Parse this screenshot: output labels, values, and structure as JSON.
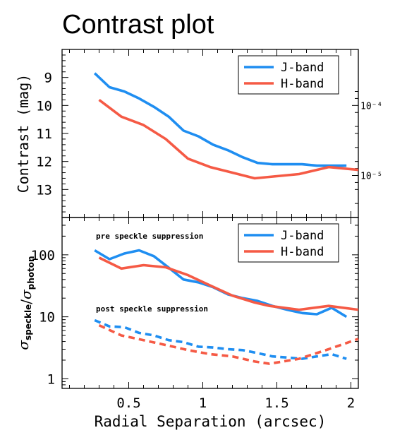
{
  "page": {
    "title": "Contrast plot"
  },
  "chart_data": [
    {
      "type": "line",
      "panel": "top",
      "xlabel": "Radial Separation (arcsec)",
      "ylabel": "Contrast (mag)",
      "xlim": [
        0.05,
        2.05
      ],
      "ylim": [
        14,
        8
      ],
      "y_inverted": true,
      "yticks": [
        9,
        10,
        11,
        12,
        13
      ],
      "right_axis_ticks": [
        "10⁻⁴",
        "10⁻⁵"
      ],
      "right_axis_tick_mags": [
        10,
        12.5
      ],
      "legend": {
        "placement": "top-right",
        "entries": [
          "J-band",
          "H-band"
        ]
      },
      "series": [
        {
          "name": "J-band",
          "color": "#1f8ef1",
          "style": "solid",
          "x": [
            0.27,
            0.37,
            0.47,
            0.57,
            0.67,
            0.77,
            0.87,
            0.97,
            1.07,
            1.17,
            1.27,
            1.37,
            1.47,
            1.57,
            1.67,
            1.77,
            1.87,
            1.97
          ],
          "y": [
            8.85,
            9.35,
            9.5,
            9.75,
            10.05,
            10.4,
            10.9,
            11.1,
            11.4,
            11.6,
            11.85,
            12.05,
            12.1,
            12.1,
            12.1,
            12.15,
            12.15,
            12.15
          ]
        },
        {
          "name": "H-band",
          "color": "#f55a45",
          "style": "solid",
          "x": [
            0.3,
            0.45,
            0.6,
            0.75,
            0.9,
            1.05,
            1.2,
            1.35,
            1.45,
            1.65,
            1.85,
            2.05
          ],
          "y": [
            9.8,
            10.4,
            10.7,
            11.2,
            11.9,
            12.2,
            12.4,
            12.6,
            12.55,
            12.45,
            12.2,
            12.3
          ]
        }
      ]
    },
    {
      "type": "line",
      "panel": "bottom",
      "xlabel": "Radial Separation (arcsec)",
      "ylabel": "σspeckle/σphoton",
      "xlim": [
        0.05,
        2.05
      ],
      "ylim": [
        0.7,
        400
      ],
      "yscale": "log",
      "yticks": [
        1,
        10,
        100
      ],
      "xticks": [
        0.5,
        1,
        1.5,
        2
      ],
      "legend": {
        "placement": "top-right",
        "entries": [
          "J-band",
          "H-band"
        ]
      },
      "annotations": [
        "pre speckle suppression",
        "post speckle suppression"
      ],
      "series": [
        {
          "name": "J-band",
          "group": "pre speckle suppression",
          "color": "#1f8ef1",
          "style": "solid",
          "x": [
            0.27,
            0.37,
            0.47,
            0.57,
            0.67,
            0.77,
            0.87,
            0.97,
            1.07,
            1.17,
            1.27,
            1.37,
            1.47,
            1.57,
            1.67,
            1.77,
            1.87,
            1.97
          ],
          "y": [
            118,
            85,
            105,
            118,
            95,
            62,
            40,
            36,
            30,
            23,
            20,
            18,
            15,
            13,
            11.5,
            11,
            14,
            10
          ]
        },
        {
          "name": "H-band",
          "group": "pre speckle suppression",
          "color": "#f55a45",
          "style": "solid",
          "x": [
            0.3,
            0.45,
            0.6,
            0.75,
            0.9,
            1.05,
            1.2,
            1.35,
            1.45,
            1.65,
            1.85,
            2.05
          ],
          "y": [
            90,
            60,
            68,
            63,
            47,
            32,
            22,
            17,
            15,
            13,
            15,
            13
          ]
        },
        {
          "name": "J-band",
          "group": "post speckle suppression",
          "color": "#1f8ef1",
          "style": "dashed",
          "x": [
            0.27,
            0.37,
            0.47,
            0.57,
            0.67,
            0.77,
            0.87,
            0.97,
            1.07,
            1.17,
            1.27,
            1.37,
            1.47,
            1.57,
            1.67,
            1.77,
            1.87,
            1.97
          ],
          "y": [
            8.8,
            7.0,
            6.8,
            5.5,
            5.0,
            4.2,
            3.9,
            3.3,
            3.2,
            3.0,
            2.9,
            2.6,
            2.3,
            2.2,
            2.1,
            2.3,
            2.5,
            2.1
          ]
        },
        {
          "name": "H-band",
          "group": "post speckle suppression",
          "color": "#f55a45",
          "style": "dashed",
          "x": [
            0.3,
            0.45,
            0.6,
            0.75,
            0.9,
            1.05,
            1.2,
            1.35,
            1.45,
            1.65,
            1.85,
            2.05
          ],
          "y": [
            7.3,
            5.0,
            4.2,
            3.5,
            2.9,
            2.5,
            2.3,
            1.9,
            1.75,
            2.1,
            3.0,
            4.4
          ]
        }
      ]
    }
  ]
}
